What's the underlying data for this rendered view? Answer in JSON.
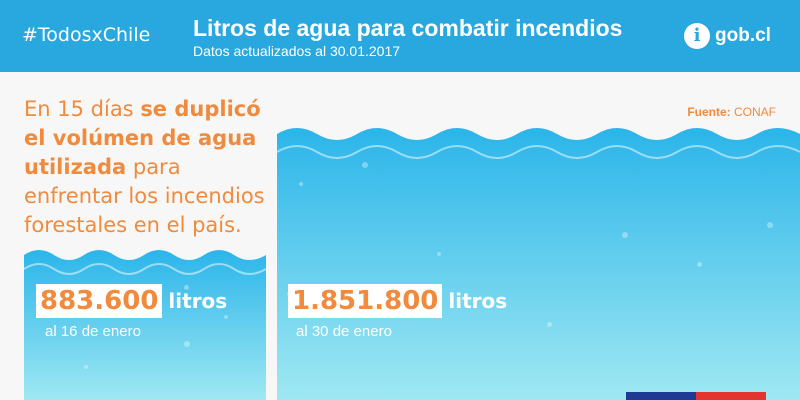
{
  "header": {
    "hashtag": "#TodosxChile",
    "title": "Litros de agua para combatir incendios",
    "subtitle": "Datos actualizados al 30.01.2017",
    "logo_icon": "i",
    "logo_text": "gob.cl"
  },
  "source": {
    "label": "Fuente:",
    "value": "CONAF"
  },
  "headline": {
    "part1": "En 15 días ",
    "bold": "se duplicó el volúmen de agua utilizada",
    "part2": " para enfrentar los incendios forestales en el país."
  },
  "stats": [
    {
      "amount": "883.600",
      "unit": "litros",
      "date": "al 16 de enero"
    },
    {
      "amount": "1.851.800",
      "unit": "litros",
      "date": "al 30 de enero"
    }
  ],
  "colors": {
    "header": "#29a8df",
    "water_top": "#2bb5ea",
    "water_bottom": "#9fe8f2",
    "accent": "#f08a3c",
    "flag_blue": "#1f3a93",
    "flag_red": "#e3342f"
  }
}
